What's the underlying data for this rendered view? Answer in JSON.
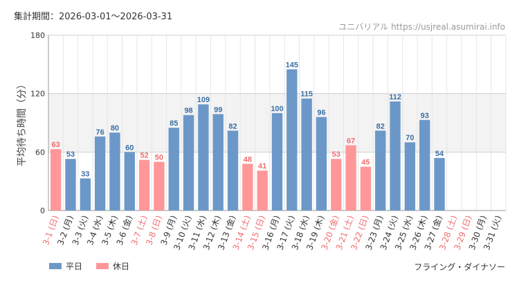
{
  "header": {
    "period": "集計期間：2026-03-01～2026-03-31",
    "site": "ユニバリアル",
    "url": "https://usjreal.asumirai.info"
  },
  "footer": {
    "attraction": "フライング・ダイナソー"
  },
  "colors": {
    "weekday": "#6b98c8",
    "holiday": "#ff9799",
    "weekday_text": "#3a6ea5",
    "holiday_text": "#f06c6e",
    "band": "#f3f3f3"
  },
  "chart_data": {
    "type": "bar",
    "title": "",
    "ylabel": "平均待ち時間（分）",
    "xlabel": "",
    "ylim": [
      0,
      180
    ],
    "yticks": [
      0,
      60,
      120,
      180
    ],
    "legend": [
      {
        "key": "weekday",
        "label": "平日"
      },
      {
        "key": "holiday",
        "label": "休日"
      }
    ],
    "categories": [
      "3-1 (日)",
      "3-2 (月)",
      "3-3 (火)",
      "3-4 (水)",
      "3-5 (木)",
      "3-6 (金)",
      "3-7 (土)",
      "3-8 (日)",
      "3-9 (月)",
      "3-10 (火)",
      "3-11 (水)",
      "3-12 (木)",
      "3-13 (金)",
      "3-14 (土)",
      "3-15 (日)",
      "3-16 (月)",
      "3-17 (火)",
      "3-18 (水)",
      "3-19 (木)",
      "3-20 (金)",
      "3-21 (土)",
      "3-22 (日)",
      "3-23 (月)",
      "3-24 (火)",
      "3-25 (水)",
      "3-26 (木)",
      "3-27 (金)",
      "3-28 (土)",
      "3-29 (日)",
      "3-30 (月)",
      "3-31 (火)"
    ],
    "values": [
      63,
      53,
      33,
      76,
      80,
      60,
      52,
      50,
      85,
      98,
      109,
      99,
      82,
      48,
      41,
      100,
      145,
      115,
      96,
      53,
      67,
      45,
      82,
      112,
      70,
      93,
      54,
      null,
      null,
      null,
      null
    ],
    "day_type": [
      "holiday",
      "weekday",
      "weekday",
      "weekday",
      "weekday",
      "weekday",
      "holiday",
      "holiday",
      "weekday",
      "weekday",
      "weekday",
      "weekday",
      "weekday",
      "holiday",
      "holiday",
      "weekday",
      "weekday",
      "weekday",
      "weekday",
      "holiday",
      "holiday",
      "holiday",
      "weekday",
      "weekday",
      "weekday",
      "weekday",
      "weekday",
      "holiday",
      "holiday",
      "weekday",
      "weekday"
    ]
  }
}
